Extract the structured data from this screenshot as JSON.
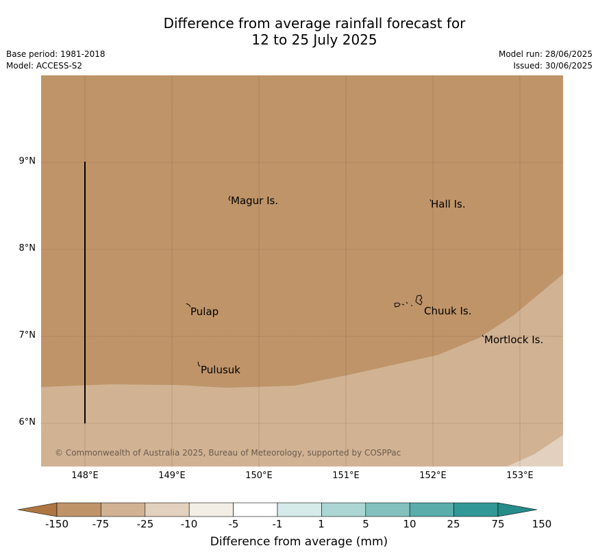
{
  "title": {
    "line1": "Difference from average rainfall forecast for",
    "line2": "12 to 25 July 2025"
  },
  "meta_left": {
    "base_period": "Base period: 1981-2018",
    "model": "Model: ACCESS-S2"
  },
  "meta_right": {
    "model_run": "Model run: 28/06/2025",
    "issued": "Issued: 30/06/2025"
  },
  "map": {
    "lat_labels": [
      "9°N",
      "8°N",
      "7°N",
      "6°N"
    ],
    "lon_labels": [
      "148°E",
      "149°E",
      "150°E",
      "151°E",
      "152°E",
      "153°E"
    ],
    "place_labels": [
      "Magur Is.",
      "Hall Is.",
      "Pulap",
      "Chuuk Is.",
      "Mortlock Is.",
      "Pulusuk"
    ],
    "copyright": "© Commonwealth of Australia 2025, Bureau of Meteorology, supported by COSPPac",
    "dominant_category": "-75 to -25",
    "secondary_category": "-25 to -10"
  },
  "colorbar": {
    "labels": [
      "-150",
      "-75",
      "-25",
      "-10",
      "-5",
      "-1",
      "1",
      "5",
      "10",
      "25",
      "75",
      "150"
    ],
    "colors": [
      "#ad7642",
      "#bf9469",
      "#d1b394",
      "#e3d1bf",
      "#f2ede5",
      "#ffffff",
      "#d5ebe9",
      "#acd6d4",
      "#82c1be",
      "#5aadaa",
      "#319896",
      "#268c8a"
    ],
    "title": "Difference from average (mm)"
  }
}
